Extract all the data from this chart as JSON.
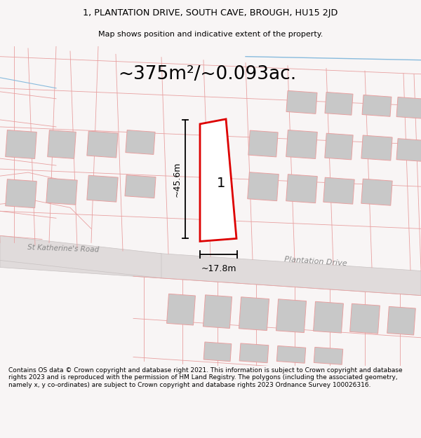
{
  "title_line1": "1, PLANTATION DRIVE, SOUTH CAVE, BROUGH, HU15 2JD",
  "title_line2": "Map shows position and indicative extent of the property.",
  "area_label": "~375m²/~0.093ac.",
  "plot_number": "1",
  "dim_height": "~45.6m",
  "dim_width": "~17.8m",
  "road_label1": "Plantation Drive",
  "road_label2": "St Katherine's Road",
  "footer_text": "Contains OS data © Crown copyright and database right 2021. This information is subject to Crown copyright and database rights 2023 and is reproduced with the permission of HM Land Registry. The polygons (including the associated geometry, namely x, y co-ordinates) are subject to Crown copyright and database rights 2023 Ordnance Survey 100026316.",
  "bg_color": "#f8f5f5",
  "pink_line_color": "#e8a0a0",
  "red_plot_color": "#dd0000",
  "gray_building_color": "#c8c8c8",
  "road_fill": "#e0dbdb",
  "road_edge": "#c8c2c2",
  "blue_line": "#88bbdd",
  "title_fontsize": 9,
  "footer_fontsize": 6.5,
  "area_fontsize": 19
}
